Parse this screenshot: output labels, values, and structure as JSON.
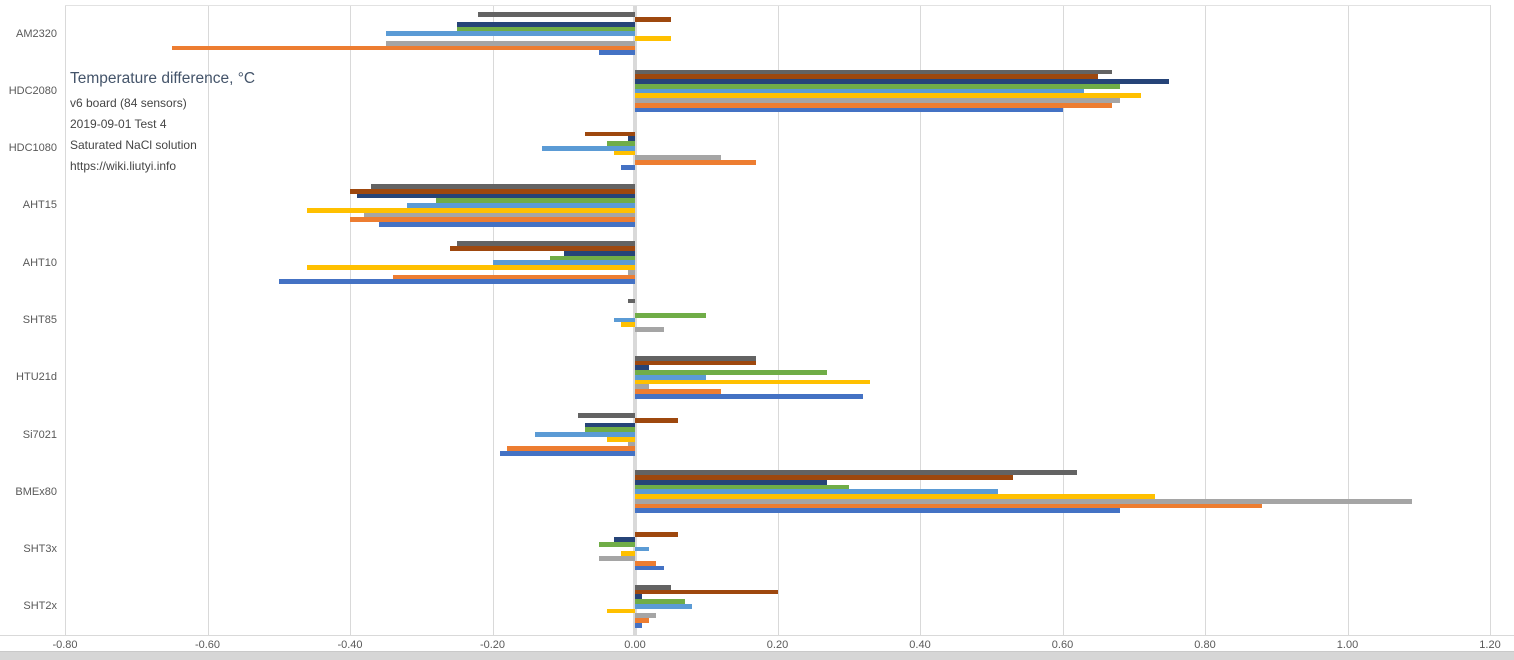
{
  "title_block": {
    "title": "Temperature difference, °C",
    "board": "v6 board (84 sensors)",
    "date": "2019-09-01 Test 4",
    "solution": "Saturated NaCl solution",
    "url": "https://wiki.liutyi.info"
  },
  "chart_data": {
    "type": "bar",
    "orientation": "horizontal",
    "title": "Temperature difference, °C",
    "annotations": [
      "v6 board (84 sensors)",
      "2019-09-01 Test 4",
      "Saturated NaCl solution",
      "https://wiki.liutyi.info"
    ],
    "legend": "none",
    "grid": "vertical-gridlines",
    "xlabel": "",
    "ylabel": "",
    "xlim": [
      -0.8,
      1.2
    ],
    "x_ticks": [
      -0.8,
      -0.6,
      -0.4,
      -0.2,
      0.0,
      0.2,
      0.4,
      0.6,
      0.8,
      1.0,
      1.2
    ],
    "x_tick_labels": [
      "-0.80",
      "-0.60",
      "-0.40",
      "-0.20",
      "0.00",
      "0.20",
      "0.40",
      "0.60",
      "0.80",
      "1.00",
      "1.20"
    ],
    "categories": [
      "AM2320",
      "HDC2080",
      "HDC1080",
      "AHT15",
      "AHT10",
      "SHT85",
      "HTU21d",
      "Si7021",
      "BMEx80",
      "SHT3x",
      "SHT2x"
    ],
    "series_order_note": "series listed top-to-bottom as drawn within each category group; names not shown in chart, identified by bar color",
    "series": [
      {
        "name": "dark-gray-series",
        "color": "#636363",
        "values": [
          -0.22,
          0.67,
          0.0,
          -0.37,
          -0.25,
          -0.01,
          0.17,
          -0.08,
          0.62,
          0.0,
          0.05
        ]
      },
      {
        "name": "dark-red-series",
        "color": "#9E480E",
        "values": [
          0.05,
          0.65,
          -0.07,
          -0.4,
          -0.26,
          0.0,
          0.17,
          0.06,
          0.53,
          0.06,
          0.2
        ]
      },
      {
        "name": "navy-series",
        "color": "#264478",
        "values": [
          -0.25,
          0.75,
          -0.01,
          -0.39,
          -0.1,
          0.0,
          0.02,
          -0.07,
          0.27,
          -0.03,
          0.01
        ]
      },
      {
        "name": "green-series",
        "color": "#70AD47",
        "values": [
          -0.25,
          0.68,
          -0.04,
          -0.28,
          -0.12,
          0.1,
          0.27,
          -0.07,
          0.3,
          -0.05,
          0.07
        ]
      },
      {
        "name": "light-blue-series",
        "color": "#5B9BD5",
        "values": [
          -0.35,
          0.63,
          -0.13,
          -0.32,
          -0.2,
          -0.03,
          0.1,
          -0.14,
          0.51,
          0.02,
          0.08
        ]
      },
      {
        "name": "yellow-series",
        "color": "#FFC000",
        "values": [
          0.05,
          0.71,
          -0.03,
          -0.46,
          -0.46,
          -0.02,
          0.33,
          -0.04,
          0.73,
          -0.02,
          -0.04
        ]
      },
      {
        "name": "gray-series",
        "color": "#A5A5A5",
        "values": [
          -0.35,
          0.68,
          0.12,
          -0.38,
          -0.01,
          0.04,
          0.02,
          -0.01,
          1.09,
          -0.05,
          0.03
        ]
      },
      {
        "name": "orange-series",
        "color": "#ED7D31",
        "values": [
          -0.65,
          0.67,
          0.17,
          -0.4,
          -0.34,
          0.0,
          0.12,
          -0.18,
          0.88,
          0.03,
          0.02
        ]
      },
      {
        "name": "blue-series",
        "color": "#4472C4",
        "values": [
          -0.05,
          0.6,
          -0.02,
          -0.36,
          -0.5,
          0.0,
          0.32,
          -0.19,
          0.68,
          0.04,
          0.01
        ]
      }
    ],
    "colors": {
      "gridline": "#D9D9D9",
      "axis_text": "#595959",
      "title_text": "#44546A"
    }
  }
}
